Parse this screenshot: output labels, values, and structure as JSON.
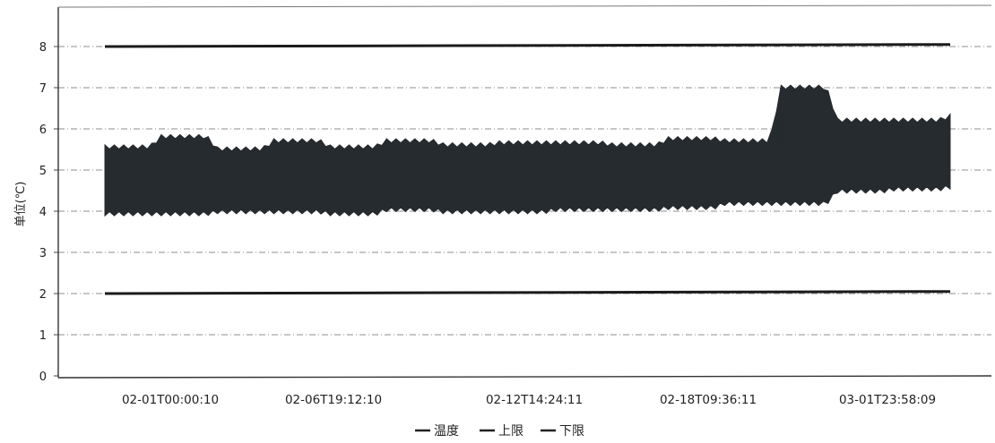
{
  "chart_data": {
    "type": "line",
    "ylabel": "单位(℃)",
    "ylim": [
      0,
      8.5
    ],
    "yticks": [
      "0",
      "1",
      "2",
      "3",
      "4",
      "5",
      "6",
      "7",
      "8"
    ],
    "x_tick_labels": [
      "02-01T00:00:10",
      "02-06T19:12:10",
      "02-12T14:24:11",
      "02-18T09:36:11",
      "03-01T23:58:09"
    ],
    "grid": "horizontal dashed",
    "legend_position": "bottom",
    "series": [
      {
        "name": "温度",
        "color": "#262b2f",
        "x": [
          "02-01T00:00:10",
          "02-03",
          "02-04",
          "02-06T19:12:10",
          "02-08",
          "02-10",
          "02-12T14:24:11",
          "02-14",
          "02-16",
          "02-18T09:36:11",
          "02-21",
          "02-24",
          "02-25T08:00",
          "02-25T08:30",
          "02-27",
          "03-01T23:58:09"
        ],
        "min": [
          3.95,
          3.95,
          4.0,
          4.0,
          3.95,
          4.05,
          4.0,
          4.0,
          4.05,
          4.05,
          4.1,
          4.2,
          4.2,
          4.5,
          4.55,
          4.6
        ],
        "max": [
          5.55,
          5.8,
          5.5,
          5.7,
          5.55,
          5.7,
          5.6,
          5.65,
          5.65,
          5.6,
          5.75,
          5.7,
          7.0,
          6.2,
          6.2,
          6.3
        ]
      },
      {
        "name": "上限",
        "color": "#1b1b1b",
        "y_start": 8.0,
        "y_end": 8.05
      },
      {
        "name": "下限",
        "color": "#1b1b1b",
        "y_start": 2.0,
        "y_end": 2.05
      }
    ]
  }
}
